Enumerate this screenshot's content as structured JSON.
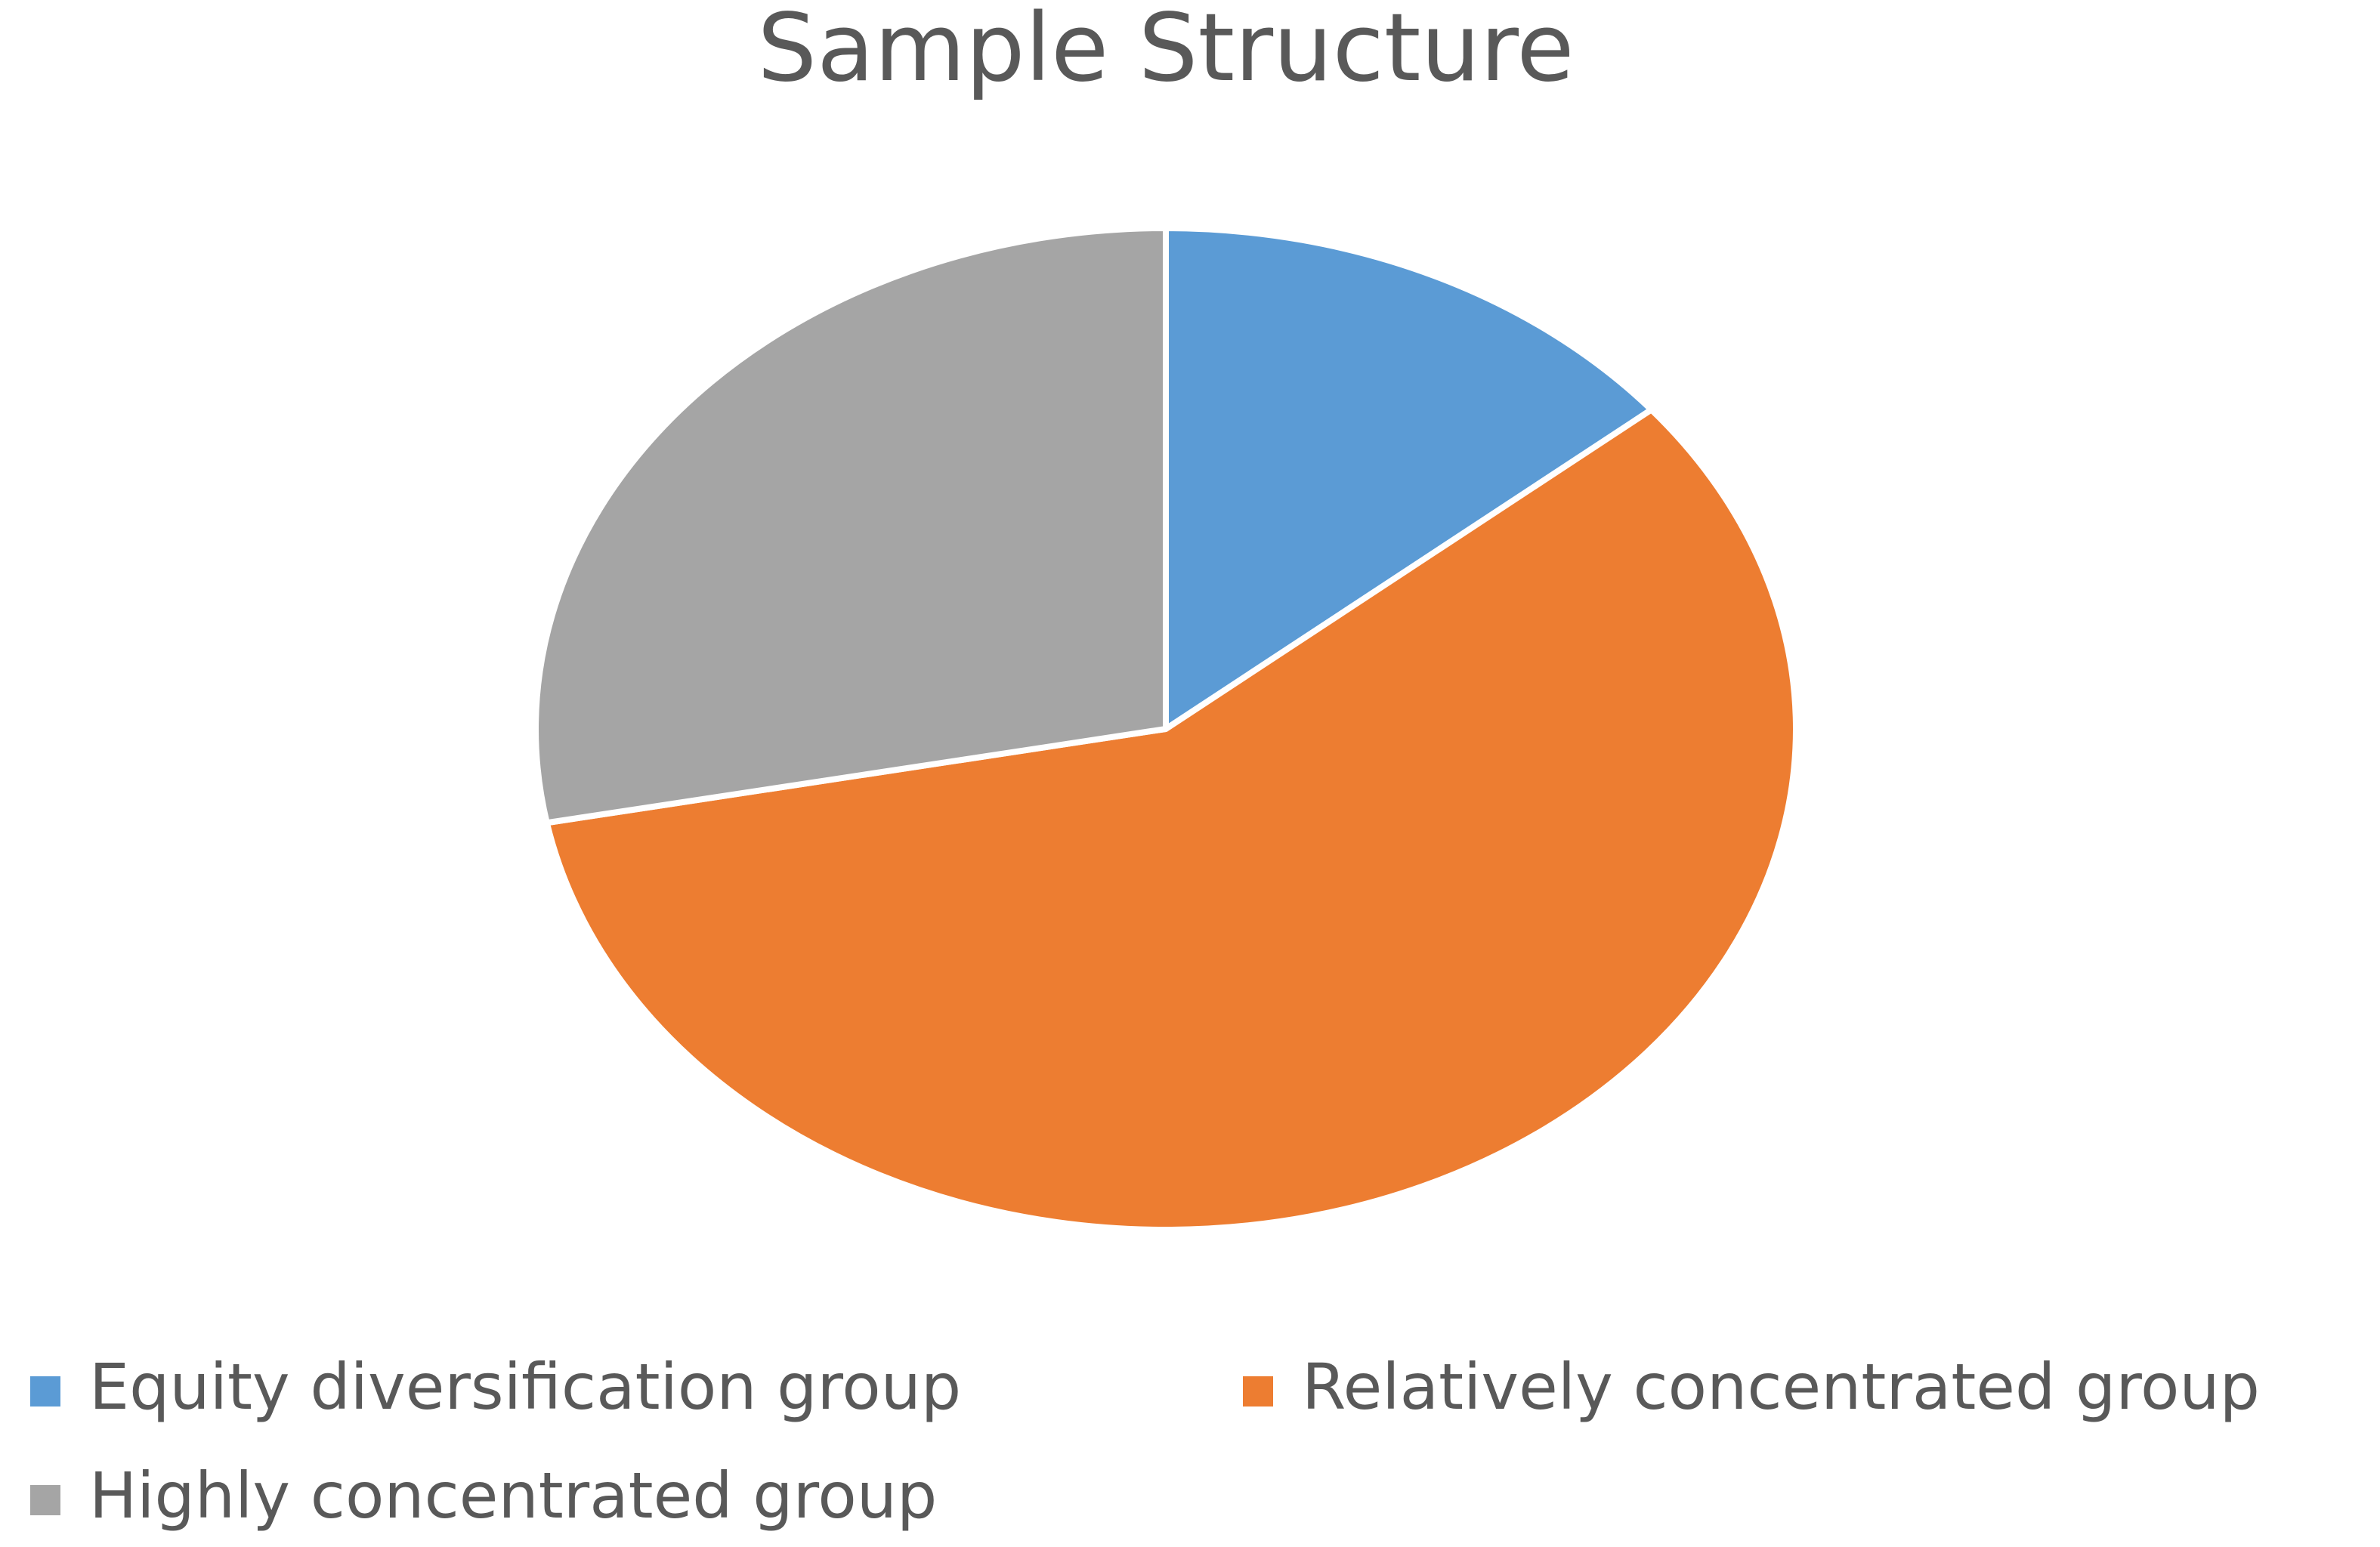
{
  "chart_data": {
    "type": "pie",
    "title": "Sample Structure",
    "categories": [
      "Equity diversification group",
      "Relatively concentrated group",
      "Highly concentrated group"
    ],
    "values": [
      14,
      58,
      28
    ],
    "colors": [
      "#5b9bd5",
      "#ed7d31",
      "#a5a5a5"
    ]
  }
}
